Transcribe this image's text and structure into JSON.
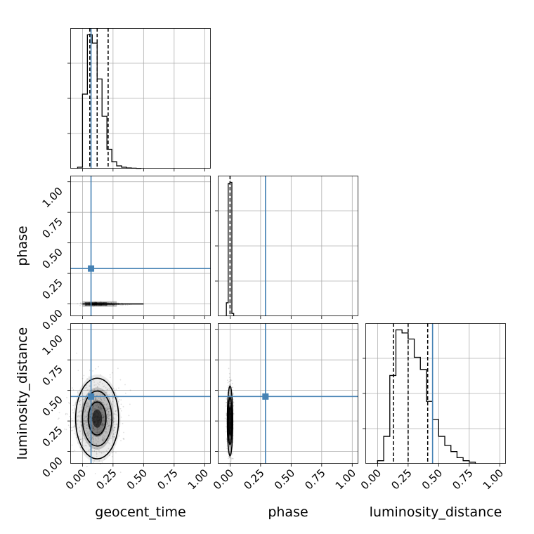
{
  "chart_data": {
    "type": "corner",
    "parameters": [
      "geocent_time",
      "phase",
      "luminosity_distance"
    ],
    "tick_labels": [
      "0.00",
      "0.25",
      "0.50",
      "0.75",
      "1.00"
    ],
    "axis_range": [
      -0.1,
      1.05
    ],
    "truth_color": "#4682b4",
    "truths": {
      "geocent_time": 0.07,
      "phase": 0.29,
      "luminosity_distance": 0.45
    },
    "marginals": [
      {
        "parameter": "geocent_time",
        "bin_edges": [
          -0.04,
          0.0,
          0.04,
          0.08,
          0.12,
          0.16,
          0.2,
          0.24,
          0.28,
          0.32,
          0.36,
          0.4,
          0.44,
          0.48
        ],
        "counts": [
          0.01,
          0.54,
          0.97,
          0.91,
          0.65,
          0.38,
          0.14,
          0.05,
          0.02,
          0.01,
          0.005,
          0.003,
          0.002
        ],
        "quantiles": [
          0.06,
          0.12,
          0.21
        ],
        "grid": true
      },
      {
        "parameter": "phase",
        "bin_edges": [
          -0.03,
          -0.015,
          0.0,
          0.015,
          0.03
        ],
        "counts": [
          0.1,
          0.99,
          1.0,
          0.02
        ],
        "quantiles": [
          0.0
        ],
        "grid": true
      },
      {
        "parameter": "luminosity_distance",
        "bin_edges": [
          0.0,
          0.05,
          0.1,
          0.15,
          0.2,
          0.25,
          0.3,
          0.35,
          0.4,
          0.45,
          0.5,
          0.55,
          0.6,
          0.65,
          0.7,
          0.75,
          0.8
        ],
        "counts": [
          0.02,
          0.18,
          0.58,
          0.88,
          0.86,
          0.82,
          0.7,
          0.62,
          0.41,
          0.29,
          0.18,
          0.12,
          0.08,
          0.04,
          0.02,
          0.01
        ],
        "quantiles": [
          0.13,
          0.25,
          0.41
        ],
        "grid": true
      }
    ],
    "joint": [
      {
        "x": "geocent_time",
        "y": "phase",
        "center": [
          0.12,
          0.0
        ],
        "spread": [
          0.1,
          0.005
        ],
        "x_extent": [
          0.0,
          0.5
        ]
      },
      {
        "x": "geocent_time",
        "y": "luminosity_distance",
        "center": [
          0.12,
          0.27
        ],
        "spread": [
          0.08,
          0.15
        ],
        "contour_levels": [
          0.3,
          0.22,
          0.14
        ]
      },
      {
        "x": "phase",
        "y": "luminosity_distance",
        "center": [
          0.0,
          0.25
        ],
        "spread": [
          0.01,
          0.13
        ]
      }
    ]
  }
}
